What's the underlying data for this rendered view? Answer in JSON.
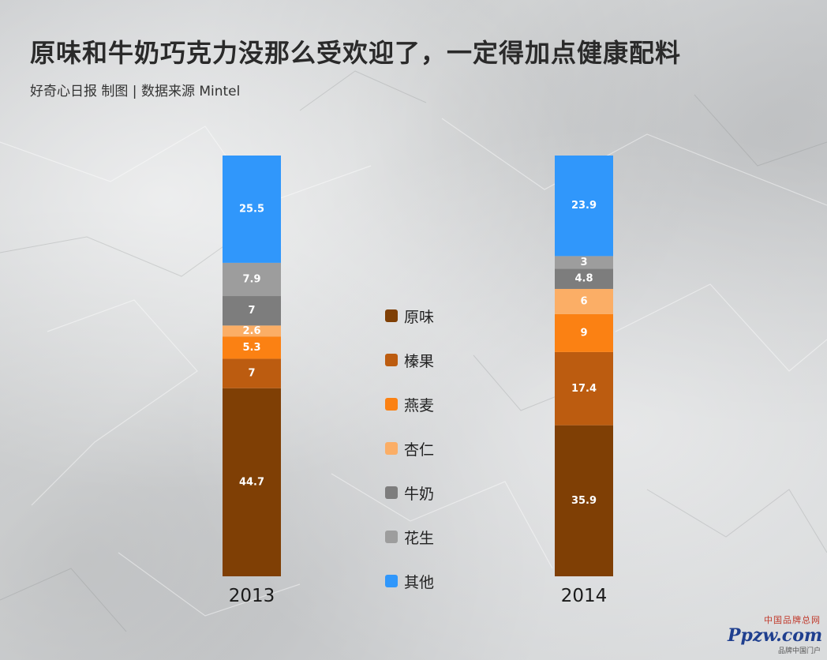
{
  "header": {
    "title": "原味和牛奶巧克力没那么受欢迎了，一定得加点健康配料",
    "subtitle": "好奇心日报 制图 | 数据来源 Mintel"
  },
  "chart_data": {
    "type": "bar",
    "stacked": true,
    "categories": [
      "2013",
      "2014"
    ],
    "series": [
      {
        "name": "原味",
        "color": "#7f3f05",
        "values": [
          44.7,
          35.9
        ]
      },
      {
        "name": "榛果",
        "color": "#bc5c10",
        "values": [
          7,
          17.4
        ]
      },
      {
        "name": "燕麦",
        "color": "#fb8113",
        "values": [
          5.3,
          9
        ]
      },
      {
        "name": "杏仁",
        "color": "#fbae66",
        "values": [
          2.6,
          6
        ]
      },
      {
        "name": "牛奶",
        "color": "#7d7d7d",
        "values": [
          7,
          4.8
        ]
      },
      {
        "name": "花生",
        "color": "#9d9d9d",
        "values": [
          7.9,
          3
        ]
      },
      {
        "name": "其他",
        "color": "#3097fb",
        "values": [
          25.5,
          23.9
        ]
      }
    ],
    "ylim": [
      0,
      100
    ],
    "grid": false,
    "legend": "center"
  },
  "watermark": {
    "top": "中国品牌总网",
    "main": "Ppzw.com",
    "sub": "品牌中国门户"
  }
}
